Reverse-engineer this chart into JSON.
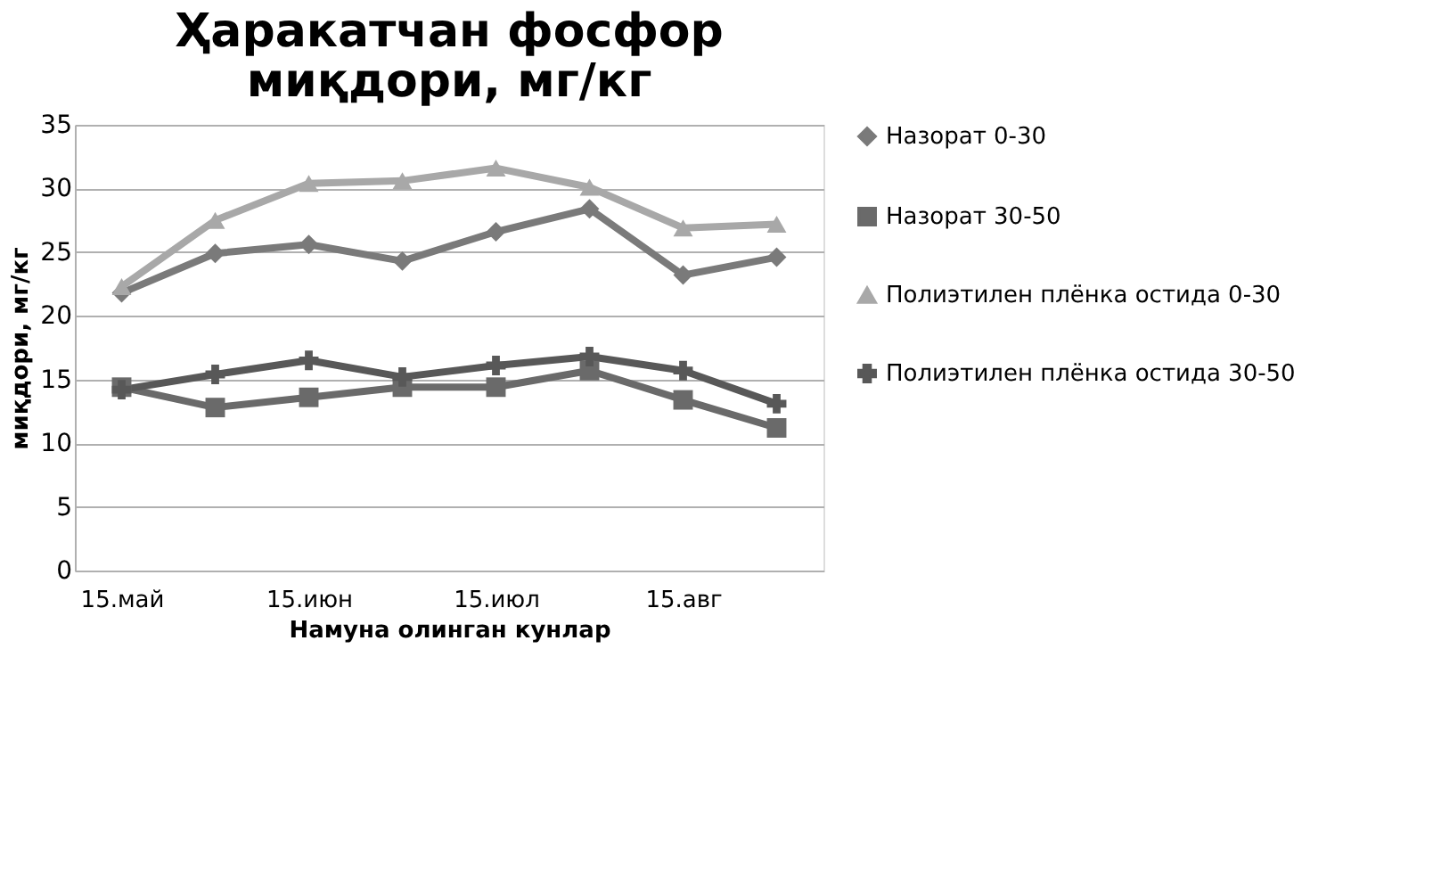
{
  "chart_data": {
    "type": "line",
    "title": [
      "Ҳаракатчан фосфор",
      "миқдори, мг/кг"
    ],
    "xlabel": "Намуна олинган кунлар",
    "ylabel": "миқдори, мг/кг",
    "categories": [
      "15.май",
      null,
      "15.июн",
      null,
      "15.июл",
      null,
      "15.авг",
      null
    ],
    "series": [
      {
        "name": "Назорат 0-30",
        "color": "#7a7a7a",
        "marker": "diamond",
        "values": [
          21.8,
          24.9,
          25.6,
          24.3,
          26.6,
          28.4,
          23.2,
          24.6
        ]
      },
      {
        "name": "Назорат 30-50",
        "color": "#6a6a6a",
        "marker": "square",
        "values": [
          14.4,
          12.8,
          13.6,
          14.4,
          14.4,
          15.7,
          13.4,
          11.2
        ]
      },
      {
        "name": "Полиэтилен плёнка остида 0-30",
        "color": "#a8a8a8",
        "marker": "triangle",
        "values": [
          22.3,
          27.5,
          30.4,
          30.6,
          31.6,
          30.1,
          26.9,
          27.2
        ]
      },
      {
        "name": "Полиэтилен плёнка остида 30-50",
        "color": "#585858",
        "marker": "cross",
        "values": [
          14.2,
          15.4,
          16.5,
          15.2,
          16.1,
          16.8,
          15.7,
          13.1
        ]
      }
    ],
    "ylim": [
      0,
      35
    ],
    "yticks": [
      0,
      5,
      10,
      15,
      20,
      25,
      30,
      35
    ],
    "grid": "y",
    "legend": "right"
  }
}
